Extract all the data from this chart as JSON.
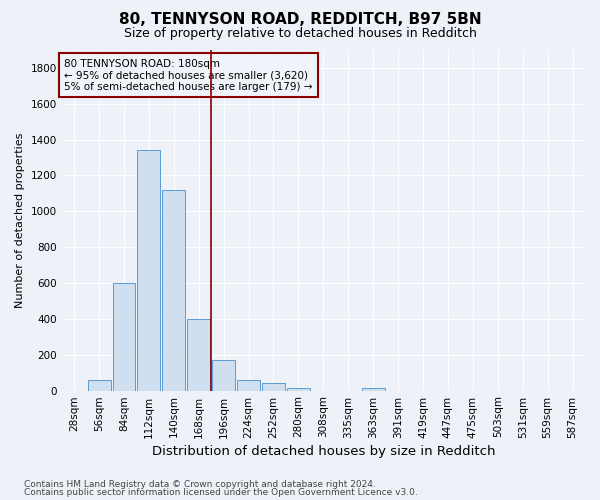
{
  "title1": "80, TENNYSON ROAD, REDDITCH, B97 5BN",
  "title2": "Size of property relative to detached houses in Redditch",
  "xlabel": "Distribution of detached houses by size in Redditch",
  "ylabel": "Number of detached properties",
  "categories": [
    "28sqm",
    "56sqm",
    "84sqm",
    "112sqm",
    "140sqm",
    "168sqm",
    "196sqm",
    "224sqm",
    "252sqm",
    "280sqm",
    "308sqm",
    "335sqm",
    "363sqm",
    "391sqm",
    "419sqm",
    "447sqm",
    "475sqm",
    "503sqm",
    "531sqm",
    "559sqm",
    "587sqm"
  ],
  "values": [
    0,
    60,
    600,
    1340,
    1120,
    400,
    170,
    60,
    40,
    15,
    0,
    0,
    15,
    0,
    0,
    0,
    0,
    0,
    0,
    0,
    0
  ],
  "bar_color": "#d0dff0",
  "bar_edge_color": "#5b9bd5",
  "vline_x_index": 5.5,
  "vline_color": "#8b0000",
  "ylim": [
    0,
    1900
  ],
  "yticks": [
    0,
    200,
    400,
    600,
    800,
    1000,
    1200,
    1400,
    1600,
    1800
  ],
  "annotation_line1": "80 TENNYSON ROAD: 180sqm",
  "annotation_line2": "← 95% of detached houses are smaller (3,620)",
  "annotation_line3": "5% of semi-detached houses are larger (179) →",
  "annotation_box_color": "#8b0000",
  "annotation_bg_color": "#f0f4fa",
  "footnote1": "Contains HM Land Registry data © Crown copyright and database right 2024.",
  "footnote2": "Contains public sector information licensed under the Open Government Licence v3.0.",
  "background_color": "#eef2f8",
  "grid_color": "#ffffff",
  "title1_fontsize": 11,
  "title2_fontsize": 9,
  "xlabel_fontsize": 9.5,
  "ylabel_fontsize": 8,
  "tick_fontsize": 7.5,
  "annotation_fontsize": 7.5,
  "footnote_fontsize": 6.5
}
